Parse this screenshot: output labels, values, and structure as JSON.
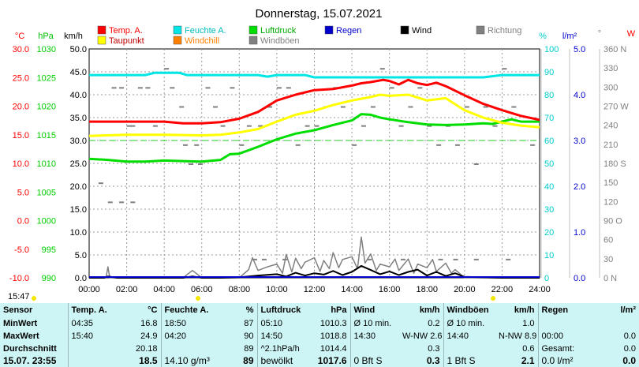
{
  "chart_data": {
    "type": "line",
    "title": "Donnerstag, 15.07.2021",
    "x_ticks": [
      "00:00",
      "02:00",
      "04:00",
      "06:00",
      "08:00",
      "10:00",
      "12:00",
      "14:00",
      "16:00",
      "18:00",
      "20:00",
      "22:00",
      "24:00"
    ],
    "x_range_hours": [
      0,
      24
    ],
    "axes": {
      "temp": {
        "unit": "°C",
        "range": [
          -10,
          30
        ],
        "ticks": [
          "30.0",
          "25.0",
          "20.0",
          "15.0",
          "10.0",
          "5.0",
          "0.0",
          "-5.0",
          "-10.0"
        ],
        "color": "#ff0000"
      },
      "pressure": {
        "unit": "hPa",
        "range": [
          990,
          1030
        ],
        "ticks": [
          "1030",
          "1025",
          "1020",
          "1015",
          "1010",
          "1005",
          "1000",
          "995",
          "990"
        ],
        "color": "#00c000"
      },
      "wind": {
        "unit": "km/h",
        "range": [
          0,
          50
        ],
        "ticks": [
          "50.0",
          "45.0",
          "40.0",
          "35.0",
          "30.0",
          "25.0",
          "20.0",
          "15.0",
          "10.0",
          "5.0",
          "0.0"
        ],
        "color": "#000000"
      },
      "humidity": {
        "unit": "%",
        "range": [
          0,
          100
        ],
        "ticks": [
          "100",
          "90",
          "80",
          "70",
          "60",
          "50",
          "40",
          "30",
          "20",
          "10",
          "0"
        ],
        "color": "#00cccc"
      },
      "rain": {
        "unit": "l/m²",
        "range": [
          0,
          5
        ],
        "ticks": [
          "5.0",
          "4.0",
          "3.0",
          "2.0",
          "1.0",
          "0.0"
        ],
        "color": "#0000cc"
      },
      "direction": {
        "unit": "°",
        "range": [
          0,
          360
        ],
        "ticks": [
          "360 N",
          "330",
          "300",
          "270 W",
          "240",
          "210",
          "180 S",
          "150",
          "120",
          "90 O",
          "60",
          "30",
          "0 N"
        ],
        "color": "#808080"
      }
    },
    "legend": [
      {
        "name": "Temp. A.",
        "color": "#ff0000"
      },
      {
        "name": "Feuchte A.",
        "color": "#00e5e5"
      },
      {
        "name": "Luftdruck",
        "color": "#00dd00"
      },
      {
        "name": "Regen",
        "color": "#0000cc"
      },
      {
        "name": "Wind",
        "color": "#000000"
      },
      {
        "name": "Richtung",
        "color": "#808080"
      },
      {
        "name": "Taupunkt",
        "color": "#ffff00"
      },
      {
        "name": "Windchill",
        "color": "#ff8000"
      },
      {
        "name": "Windböen",
        "color": "#808080"
      }
    ],
    "series": [
      {
        "name": "Temp. A.",
        "axis": "temp",
        "color": "#ff0000",
        "x": [
          0,
          2,
          4,
          5,
          6,
          7,
          8,
          9,
          10,
          11,
          12,
          13,
          14,
          14.5,
          15,
          15.67,
          16,
          16.5,
          17,
          17.5,
          18,
          18.5,
          19,
          20,
          21,
          22,
          23,
          24
        ],
        "y": [
          17.3,
          17.3,
          17.3,
          17.0,
          17.0,
          17.2,
          17.8,
          19.0,
          21.0,
          22.0,
          22.8,
          23.0,
          23.6,
          24.0,
          24.2,
          24.6,
          24.4,
          23.8,
          24.6,
          24.0,
          23.7,
          24.1,
          23.5,
          21.9,
          20.4,
          19.3,
          18.3,
          17.6
        ]
      },
      {
        "name": "Taupunkt",
        "axis": "temp",
        "color": "#ffff00",
        "x": [
          0,
          2,
          4,
          6,
          7,
          8,
          9,
          10,
          11,
          12,
          13,
          14,
          15,
          15.5,
          16,
          17,
          17.5,
          18,
          19,
          20,
          21,
          22,
          23,
          24
        ],
        "y": [
          14.8,
          15.0,
          15.0,
          14.9,
          15.0,
          15.4,
          16.0,
          17.3,
          18.5,
          19.2,
          20.2,
          21.0,
          21.6,
          22.0,
          21.8,
          22.0,
          21.5,
          21.0,
          21.4,
          19.3,
          18.0,
          17.1,
          16.6,
          16.3
        ]
      },
      {
        "name": "Feuchte A.",
        "axis": "humidity",
        "color": "#00e5e5",
        "x": [
          0,
          3,
          3.5,
          4.8,
          5.2,
          6,
          8,
          9,
          9.5,
          10,
          11.5,
          12,
          13,
          14,
          15,
          16,
          17,
          18,
          19,
          20,
          21,
          22,
          24
        ],
        "y": [
          88.6,
          88.6,
          89.6,
          89.6,
          88.6,
          88.6,
          88.6,
          88.6,
          87.9,
          88.6,
          88.6,
          87.6,
          87.6,
          87.6,
          87.6,
          87.6,
          87.6,
          87.6,
          87.6,
          87.6,
          87.6,
          88.6,
          88.6
        ]
      },
      {
        "name": "Luftdruck",
        "axis": "pressure",
        "color": "#00dd00",
        "x": [
          0,
          1,
          2,
          3,
          4,
          5,
          6,
          7,
          7.5,
          8,
          9,
          10,
          11,
          12,
          13,
          14,
          14.5,
          15,
          15.5,
          16,
          17,
          18,
          19,
          20,
          21,
          21.5,
          22,
          22.5,
          23,
          24
        ],
        "y": [
          1010.8,
          1010.6,
          1010.3,
          1010.3,
          1010.5,
          1010.4,
          1010.3,
          1010.6,
          1011.6,
          1011.7,
          1012.9,
          1014.2,
          1015.2,
          1015.8,
          1016.7,
          1017.5,
          1018.6,
          1018.5,
          1018.0,
          1017.7,
          1017.2,
          1016.8,
          1016.7,
          1016.8,
          1017.0,
          1016.9,
          1017.3,
          1017.7,
          1017.3,
          1017.3
        ]
      },
      {
        "name": "Wind",
        "axis": "wind",
        "color": "#000000",
        "x": [
          0,
          0.8,
          1,
          1.5,
          2,
          4,
          5,
          5.5,
          6,
          7,
          8,
          9,
          10,
          10.5,
          11,
          11.5,
          12,
          12.5,
          13,
          13.5,
          14,
          14.5,
          15,
          15.5,
          16,
          16.5,
          17,
          17.5,
          18,
          18.5,
          19,
          19.5,
          20,
          22,
          23,
          24
        ],
        "y": [
          0,
          0,
          0.3,
          0,
          0,
          0,
          0,
          0.3,
          0,
          0,
          0.1,
          0.5,
          0.8,
          0.3,
          1.1,
          0.5,
          1.0,
          0.7,
          1.5,
          0.6,
          1.3,
          2.6,
          1.7,
          0.8,
          1.4,
          0.6,
          1.3,
          1.8,
          0.5,
          1.3,
          0.4,
          1.0,
          0.2,
          0,
          0,
          0
        ]
      },
      {
        "name": "Windböen",
        "axis": "wind",
        "color": "#808080",
        "x": [
          0,
          0.9,
          1,
          1.1,
          1.5,
          4,
          5,
          5.5,
          6,
          8,
          8.5,
          8.7,
          9,
          9.5,
          10,
          10.3,
          10.5,
          10.8,
          11,
          11.3,
          11.5,
          12,
          12.3,
          12.5,
          12.8,
          13,
          13.3,
          13.5,
          14,
          14.3,
          14.5,
          14.7,
          15,
          15.3,
          15.5,
          16,
          16.3,
          16.5,
          17,
          17.3,
          17.5,
          18,
          18.3,
          18.5,
          19,
          19.3,
          19.5,
          20,
          22,
          24
        ],
        "y": [
          0,
          0,
          2.4,
          0,
          0,
          0,
          0,
          1.6,
          0,
          0,
          1.8,
          4.4,
          1.6,
          2.4,
          3.0,
          1.0,
          5.1,
          1.3,
          4.3,
          2.0,
          3.4,
          4.4,
          1.4,
          3.8,
          2.0,
          5.5,
          2.2,
          4.0,
          4.6,
          2.0,
          8.9,
          3.2,
          5.2,
          1.6,
          3.0,
          2.4,
          4.1,
          1.6,
          4.1,
          1.0,
          3.0,
          2.2,
          4.0,
          1.4,
          3.2,
          1.0,
          1.8,
          0,
          0,
          0
        ]
      }
    ],
    "annotations": [
      {
        "text": "°C",
        "color": "#ff0000"
      },
      {
        "text": "hPa",
        "color": "#00c000"
      },
      {
        "text": "km/h",
        "color": "#000000"
      },
      {
        "text": "%",
        "color": "#00cccc"
      },
      {
        "text": "l/m²",
        "color": "#0000cc"
      },
      {
        "text": "°",
        "color": "#808080"
      },
      {
        "text": "W",
        "color": "#ff0000"
      }
    ]
  },
  "bottom_time": "15:47",
  "stats": {
    "headers": {
      "sensor": "Sensor",
      "temp": "Temp. A.",
      "temp_unit": "°C",
      "hum": "Feuchte A.",
      "hum_unit": "%",
      "press": "Luftdruck",
      "press_unit": "hPa",
      "wind": "Wind",
      "wind_unit": "km/h",
      "gust": "Windböen",
      "gust_unit": "km/h",
      "rain": "Regen",
      "rain_unit": "l/m²"
    },
    "rows": [
      {
        "label": "MinWert",
        "temp_time": "04:35",
        "temp_val": "16.8",
        "hum_time": "18:50",
        "hum_val": "87",
        "press_time": "05:10",
        "press_val": "1010.3",
        "wind_time": "Ø 10 min.",
        "wind_val": "0.2",
        "gust_time": "Ø 10 min.",
        "gust_val": "1.0",
        "rain_time": "",
        "rain_val": ""
      },
      {
        "label": "MaxWert",
        "temp_time": "15:40",
        "temp_val": "24.9",
        "hum_time": "04:20",
        "hum_val": "90",
        "press_time": "14:50",
        "press_val": "1018.8",
        "wind_time": "14:30",
        "wind_mid": "W-NW 2.6",
        "wind_val": "",
        "gust_time": "14:40",
        "gust_mid": "N-NW 8.9",
        "gust_val": "",
        "rain_time": "00:00",
        "rain_val": "0.0"
      },
      {
        "label": "Durchschnitt",
        "temp_time": "",
        "temp_val": "20.18",
        "hum_time": "",
        "hum_val": "89",
        "press_time": "^2.1hPa/h",
        "press_val": "1014.4",
        "wind_time": "",
        "wind_val": "0.3",
        "gust_time": "",
        "gust_val": "0.6",
        "rain_time": "Gesamt:",
        "rain_val": "0.0"
      },
      {
        "label": "15.07. 23:55",
        "temp_time": "",
        "temp_val": "18.5",
        "hum_time": "14.10 g/m³",
        "hum_val": "89",
        "press_time": "bewölkt",
        "press_val": "1017.6",
        "wind_time": "0 Bft S",
        "wind_val": "0.3",
        "gust_time": "1 Bft S",
        "gust_val": "2.1",
        "rain_time": "0.0 l/m²",
        "rain_val": "0.0"
      }
    ]
  }
}
